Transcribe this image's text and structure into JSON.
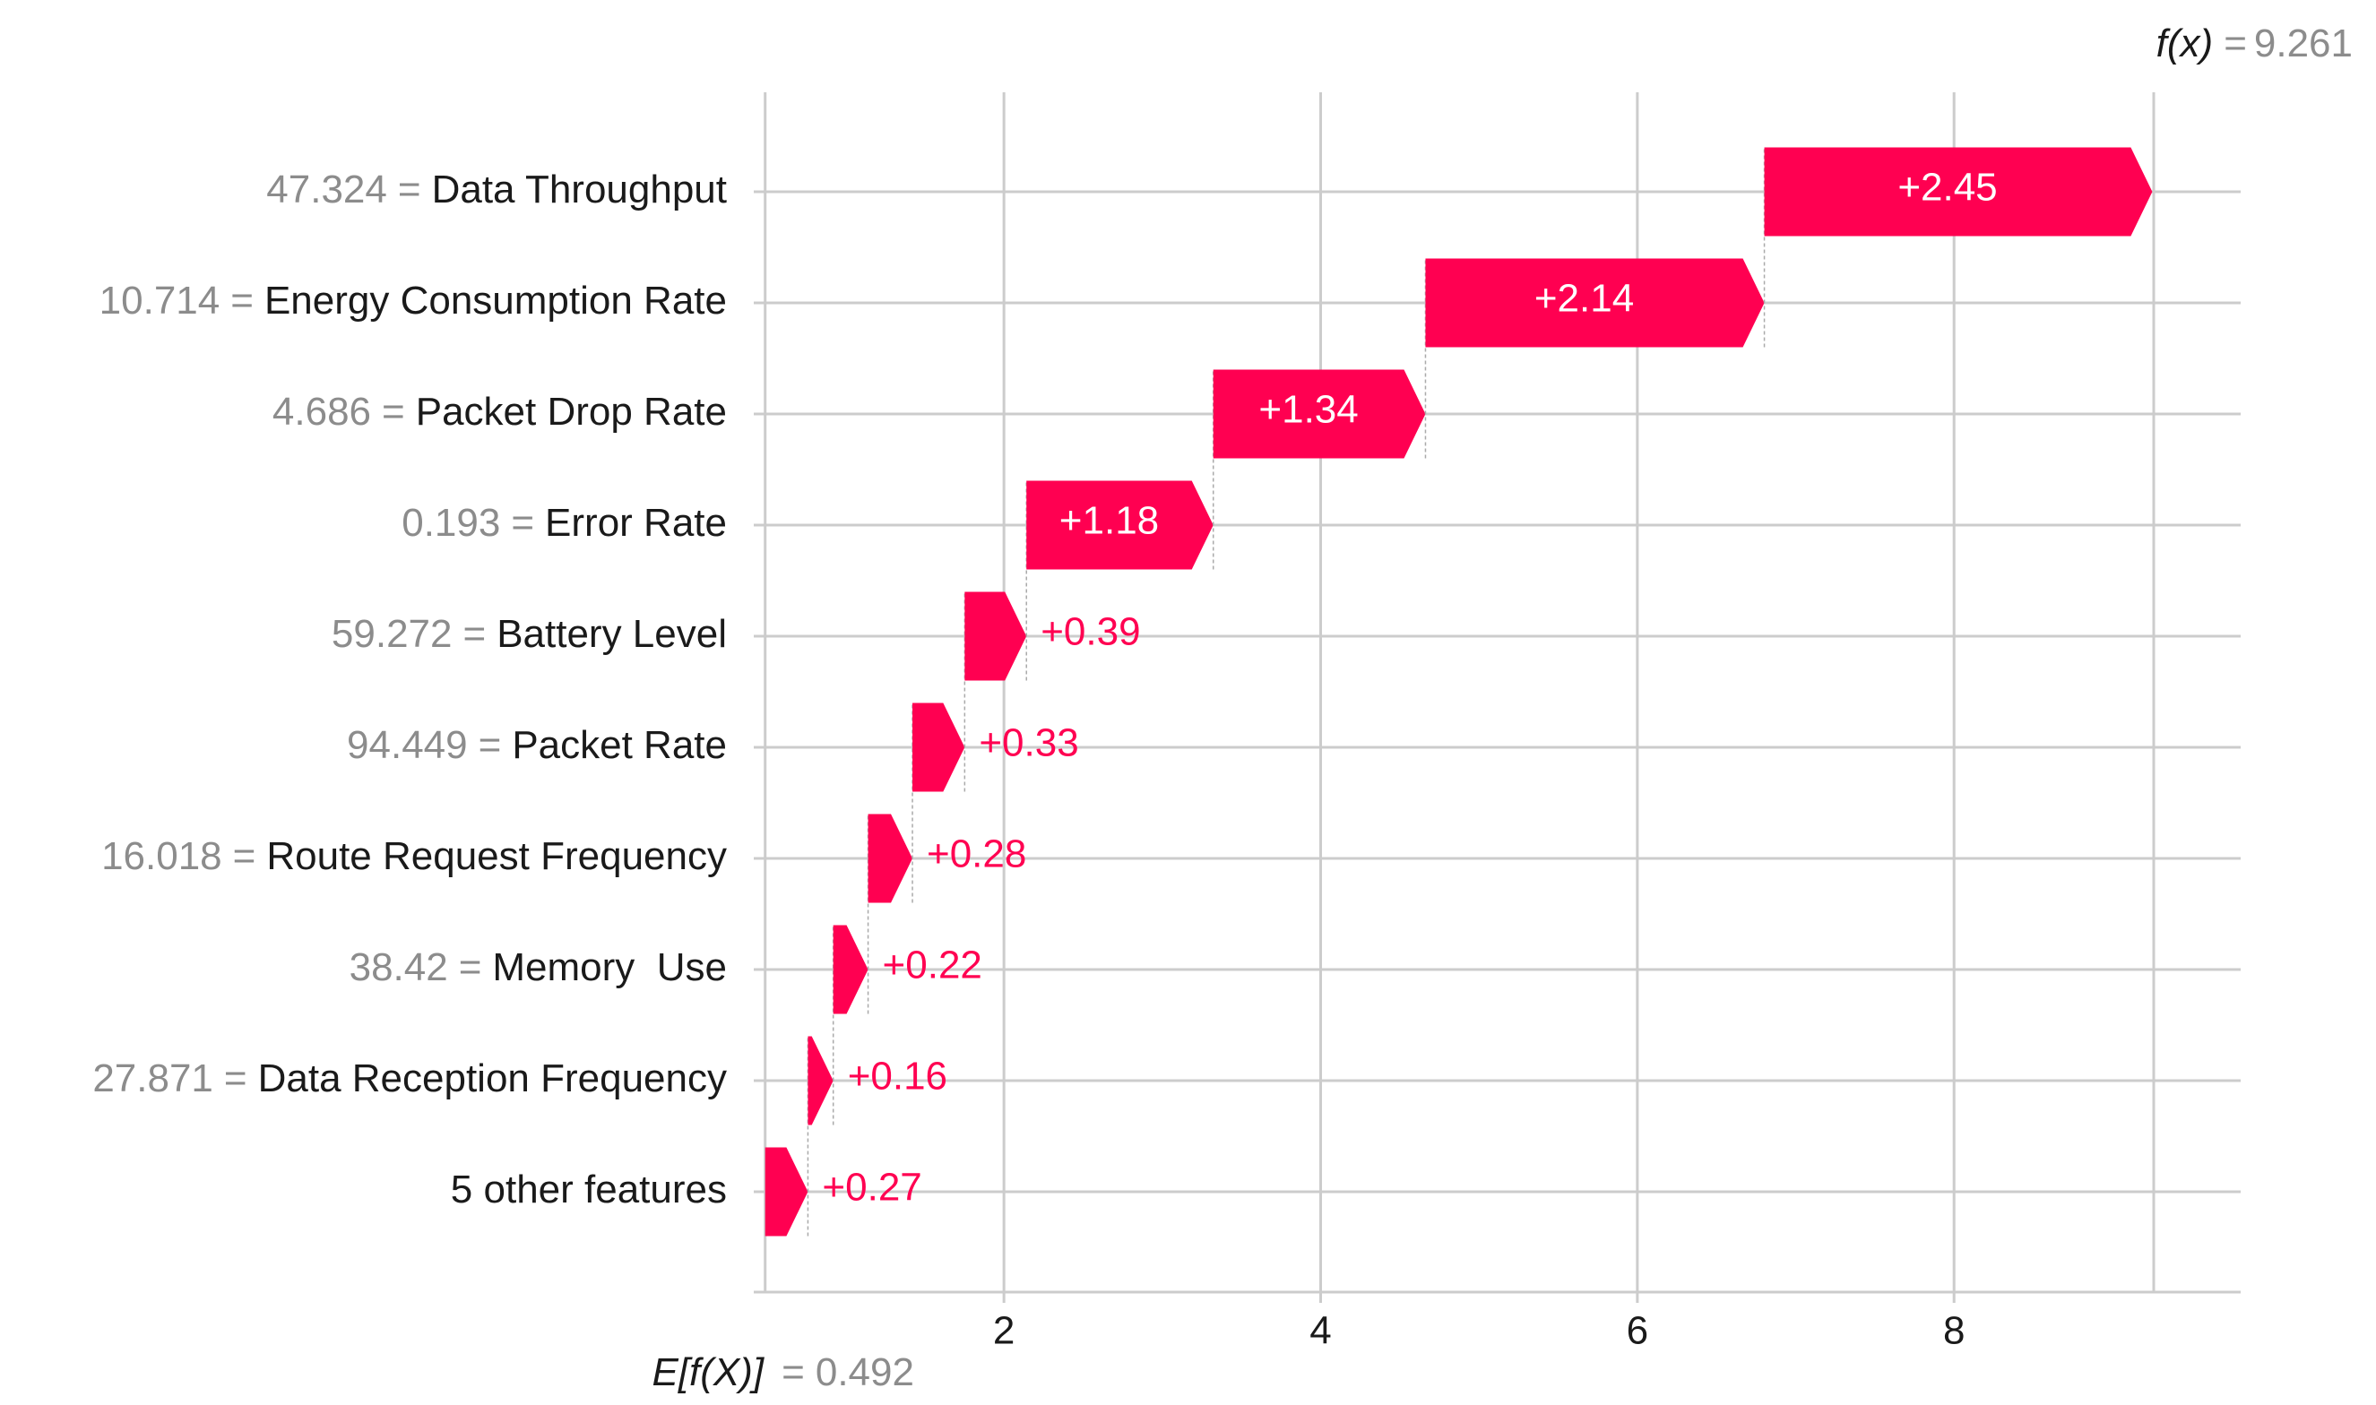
{
  "chart_data": {
    "type": "waterfall",
    "features": [
      "Data Throughput",
      "Energy Consumption Rate",
      "Packet Drop Rate",
      "Error Rate",
      "Battery Level",
      "Packet Rate",
      "Route Request Frequency",
      "Memory  Use",
      "Data Reception Frequency",
      "5 other features"
    ],
    "feature_values": [
      "47.324",
      "10.714",
      "4.686",
      "0.193",
      "59.272",
      "94.449",
      "16.018",
      "38.42",
      "27.871",
      null
    ],
    "separator": "=",
    "values": [
      2.45,
      2.14,
      1.34,
      1.18,
      0.39,
      0.33,
      0.28,
      0.22,
      0.16,
      0.27
    ],
    "value_labels": [
      "+2.45",
      "+2.14",
      "+1.34",
      "+1.18",
      "+0.39",
      "+0.33",
      "+0.28",
      "+0.22",
      "+0.16",
      "+0.27"
    ],
    "color": "#ff0051",
    "base_label": "E[f(X)]",
    "base_value": 0.492,
    "output_label": "f(x)",
    "output_value": 9.261,
    "xlim": [
      0.42,
      9.81
    ],
    "xticks": [
      2,
      4,
      6,
      8
    ],
    "grid": true
  }
}
